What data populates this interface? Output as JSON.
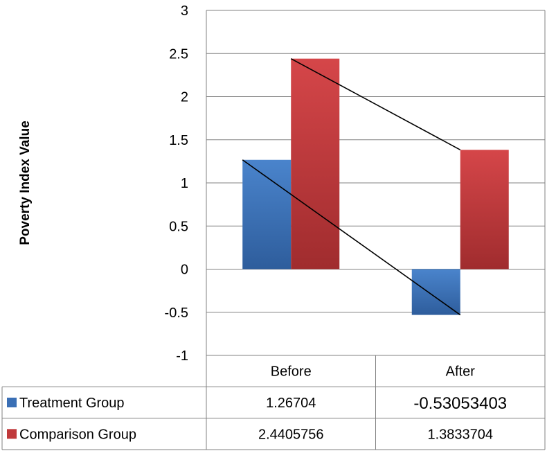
{
  "chart_data": {
    "type": "bar",
    "ylabel": "Poverty Index Value",
    "categories": [
      "Before",
      "After"
    ],
    "ylim": [
      -1,
      3
    ],
    "yticks": [
      "3",
      "2.5",
      "2",
      "1.5",
      "1",
      "0.5",
      "0",
      "-0.5",
      "-1"
    ],
    "grid": true,
    "legend_placement": "data table below chart",
    "connector_lines": true,
    "series": [
      {
        "name": "Treatment Group",
        "values": [
          1.26704,
          -0.53053403
        ],
        "labels": [
          "1.26704",
          "-0.53053403"
        ],
        "color": "#3a6fb5"
      },
      {
        "name": "Comparison Group",
        "values": [
          2.4405756,
          1.3833704
        ],
        "labels": [
          "2.4405756",
          "1.3833704"
        ],
        "color": "#c0393b"
      }
    ]
  }
}
